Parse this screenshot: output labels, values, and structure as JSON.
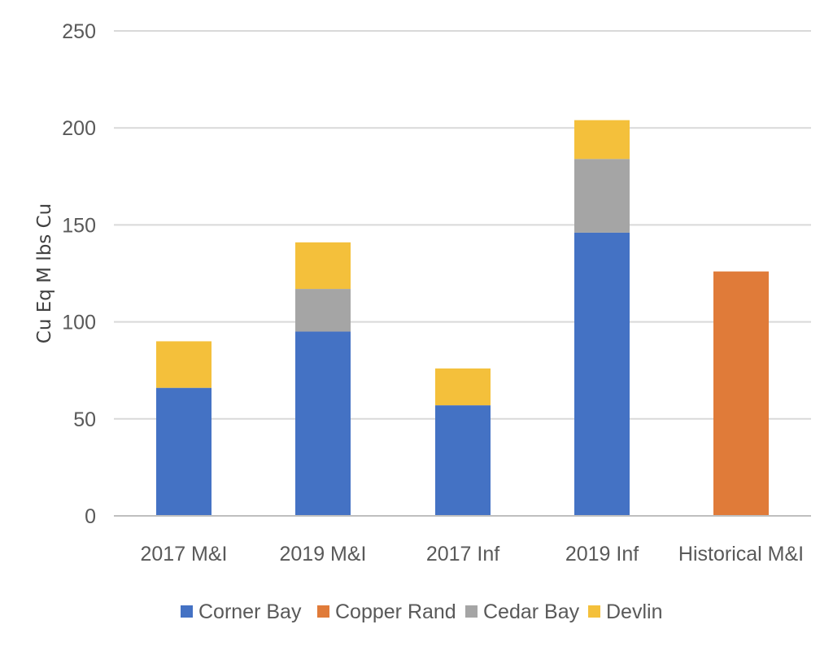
{
  "chart_data": {
    "type": "bar",
    "stacked": true,
    "title": "",
    "xlabel": "",
    "ylabel": "Cu Eq M lbs Cu",
    "ylim": [
      0,
      250
    ],
    "yticks": [
      0,
      50,
      100,
      150,
      200,
      250
    ],
    "grid": true,
    "legend_position": "bottom",
    "categories": [
      "2017 M&I",
      "2019 M&I",
      "2017 Inf",
      "2019 Inf",
      "Historical M&I"
    ],
    "series": [
      {
        "name": "Corner Bay",
        "color": "#4472c4",
        "values": [
          66,
          95,
          57,
          146,
          0
        ]
      },
      {
        "name": "Copper Rand",
        "color": "#e07b39",
        "values": [
          0,
          0,
          0,
          0,
          126
        ]
      },
      {
        "name": "Cedar Bay",
        "color": "#a5a5a5",
        "values": [
          0,
          22,
          0,
          38,
          0
        ]
      },
      {
        "name": "Devlin",
        "color": "#f4c03b",
        "values": [
          24,
          24,
          19,
          20,
          0
        ]
      }
    ],
    "gridline_color": "#d9d9d9",
    "axis_color": "#bfbfbf"
  }
}
